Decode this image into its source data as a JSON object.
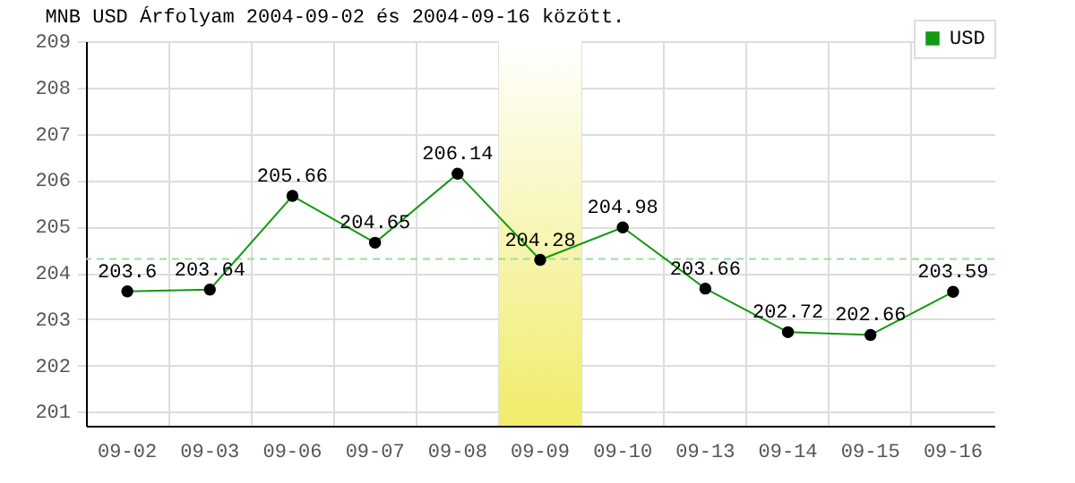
{
  "chart_data": {
    "type": "line",
    "title": "MNB USD Árfolyam 2004-09-02 és 2004-09-16 között.",
    "categories": [
      "09-02",
      "09-03",
      "09-06",
      "09-07",
      "09-08",
      "09-09",
      "09-10",
      "09-13",
      "09-14",
      "09-15",
      "09-16"
    ],
    "series": [
      {
        "name": "USD",
        "color": "#119911",
        "values": [
          203.6,
          203.64,
          205.66,
          204.65,
          206.14,
          204.28,
          204.98,
          203.66,
          202.72,
          202.66,
          203.59
        ]
      }
    ],
    "ylim": [
      200.7,
      209
    ],
    "yticks": [
      201,
      202,
      203,
      204,
      205,
      206,
      207,
      208,
      209
    ],
    "ref_lines": [
      {
        "axis": "y",
        "value": 204.3,
        "color": "#99dd99",
        "line_style": "dashed"
      }
    ],
    "bands": [
      {
        "axis": "x",
        "from": "09-09",
        "to": "09-09",
        "color": "#f0ec6a"
      }
    ],
    "data_labels": true,
    "marker": "circle",
    "grid": true,
    "legend": "top right"
  }
}
